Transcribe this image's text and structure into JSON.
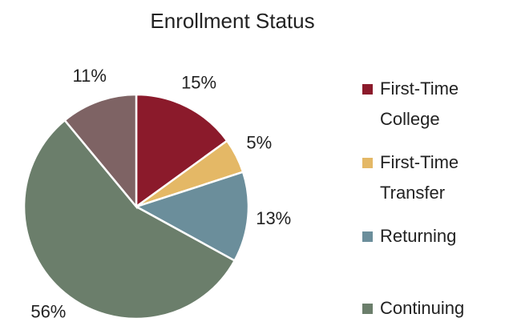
{
  "chart_data": {
    "type": "pie",
    "title": "Enrollment Status",
    "categories": [
      "First-Time College",
      "First-Time Transfer",
      "Returning",
      "Continuing",
      null
    ],
    "values": [
      15,
      5,
      13,
      56,
      11
    ],
    "value_labels": [
      "15%",
      "5%",
      "13%",
      "56%",
      "11%"
    ],
    "colors": [
      "#8b1a2b",
      "#e4b866",
      "#6b8e9b",
      "#6b7e6b",
      "#7e6364"
    ]
  }
}
